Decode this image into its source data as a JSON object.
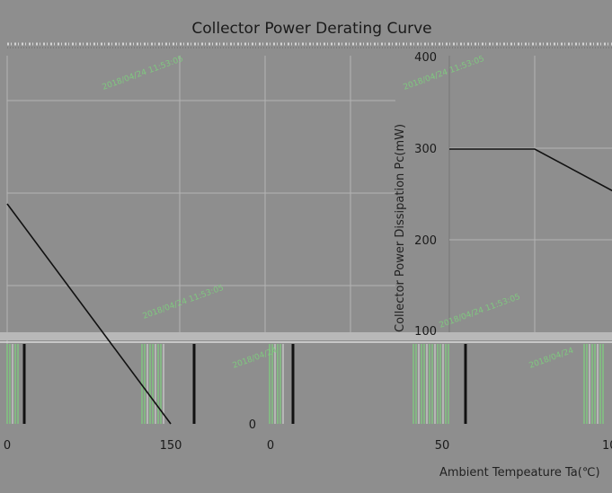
{
  "chart_data": [
    {
      "type": "line",
      "panel": "left",
      "title": "Collector Power Derating Curve",
      "x_ticks": [
        "0",
        "150"
      ],
      "xlim": [
        0,
        150
      ],
      "series": [
        {
          "x": [
            0,
            150
          ],
          "y": [
            225,
            0
          ]
        }
      ],
      "grid": true
    },
    {
      "type": "line",
      "panel": "right",
      "xlabel": "Ambient Tempeature Ta(℃)",
      "ylabel": "Collector Power Dissipation  Pc(mW)",
      "x_ticks": [
        "0",
        "50",
        "10"
      ],
      "y_ticks": [
        "0",
        "100",
        "200",
        "300",
        "400"
      ],
      "ylim": [
        0,
        400
      ],
      "series": [
        {
          "x": [
            0,
            25,
            50
          ],
          "y": [
            300,
            300,
            250
          ]
        }
      ],
      "grid": true
    }
  ],
  "colors": {
    "background": "#8e8e8e",
    "line": "#111111",
    "grid": "#b4b4b4",
    "artifact_green": "#7dd37d"
  }
}
